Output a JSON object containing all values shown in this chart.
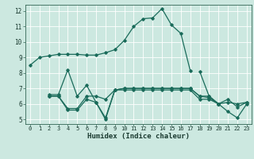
{
  "xlabel": "Humidex (Indice chaleur)",
  "bg_color": "#cce8e0",
  "grid_color": "#b0d8d0",
  "line_color": "#1a6b5a",
  "xlim": [
    -0.5,
    23.5
  ],
  "ylim": [
    4.7,
    12.4
  ],
  "yticks": [
    5,
    6,
    7,
    8,
    9,
    10,
    11,
    12
  ],
  "xticks": [
    0,
    1,
    2,
    3,
    4,
    5,
    6,
    7,
    8,
    9,
    10,
    11,
    12,
    13,
    14,
    15,
    16,
    17,
    18,
    19,
    20,
    21,
    22,
    23
  ],
  "series": [
    [
      8.5,
      9.0,
      9.1,
      9.2,
      9.2,
      9.2,
      9.15,
      9.15,
      9.3,
      9.5,
      10.1,
      11.0,
      11.5,
      11.55,
      12.15,
      11.1,
      10.55,
      8.15,
      null,
      null,
      null,
      null,
      null,
      null
    ],
    [
      null,
      null,
      null,
      null,
      null,
      null,
      null,
      null,
      null,
      null,
      null,
      null,
      null,
      null,
      null,
      null,
      null,
      null,
      8.1,
      6.5,
      6.0,
      6.1,
      6.0,
      6.1
    ],
    [
      null,
      null,
      6.6,
      6.6,
      8.2,
      6.5,
      7.2,
      6.1,
      5.0,
      6.9,
      7.0,
      7.0,
      7.0,
      7.0,
      7.0,
      7.0,
      7.0,
      7.0,
      6.5,
      6.5,
      6.0,
      6.3,
      5.8,
      6.1
    ],
    [
      null,
      null,
      6.5,
      6.5,
      5.7,
      5.7,
      6.5,
      6.5,
      6.3,
      6.9,
      7.0,
      7.0,
      7.0,
      7.0,
      7.0,
      7.0,
      7.0,
      7.0,
      6.5,
      6.4,
      6.0,
      5.5,
      5.1,
      6.0
    ],
    [
      null,
      null,
      6.5,
      6.5,
      5.6,
      5.6,
      6.3,
      6.1,
      5.1,
      6.9,
      6.9,
      6.9,
      6.9,
      6.9,
      6.9,
      6.9,
      6.9,
      6.9,
      6.3,
      6.3,
      6.0,
      null,
      null,
      null
    ]
  ]
}
